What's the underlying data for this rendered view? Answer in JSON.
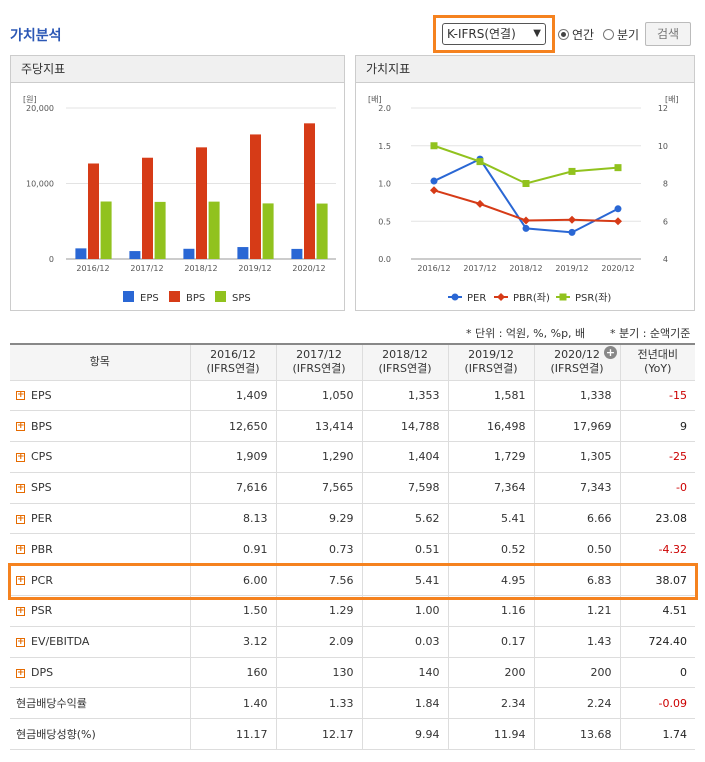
{
  "header": {
    "title": "가치분석",
    "select_value": "K-IFRS(연결)",
    "radio_annual": "연간",
    "radio_quarter": "분기",
    "search_label": "검색"
  },
  "panels": {
    "left_title": "주당지표",
    "right_title": "가치지표"
  },
  "chart_data": [
    {
      "type": "bar",
      "title": "주당지표",
      "ylabel": "[원]",
      "ylim": [
        0,
        20000
      ],
      "yticks": [
        "20,000",
        "10,000",
        "0"
      ],
      "categories": [
        "2016/12",
        "2017/12",
        "2018/12",
        "2019/12",
        "2020/12"
      ],
      "series": [
        {
          "name": "EPS",
          "color": "#2a67d4",
          "values": [
            1409,
            1050,
            1353,
            1581,
            1338
          ]
        },
        {
          "name": "BPS",
          "color": "#d63b17",
          "values": [
            12650,
            13414,
            14788,
            16498,
            17969
          ]
        },
        {
          "name": "SPS",
          "color": "#91c21e",
          "values": [
            7616,
            7565,
            7598,
            7364,
            7343
          ]
        }
      ],
      "legend": "bottom"
    },
    {
      "type": "line",
      "title": "가치지표",
      "ylabel": "[배]",
      "ylabel_right": "[배]",
      "ylim": [
        0,
        2.0
      ],
      "ylim_right": [
        4,
        12
      ],
      "yticks": [
        "2.0",
        "1.5",
        "1.0",
        "0.5",
        "0.0"
      ],
      "yticks_right": [
        "12",
        "10",
        "8",
        "6",
        "4"
      ],
      "categories": [
        "2016/12",
        "2017/12",
        "2018/12",
        "2019/12",
        "2020/12"
      ],
      "series": [
        {
          "name": "PER",
          "axis": "right",
          "color": "#2a67d4",
          "marker": "circle",
          "values": [
            8.13,
            9.29,
            5.62,
            5.41,
            6.66
          ]
        },
        {
          "name": "PBR(좌)",
          "axis": "left",
          "color": "#d63b17",
          "marker": "diamond",
          "values": [
            0.91,
            0.73,
            0.51,
            0.52,
            0.5
          ]
        },
        {
          "name": "PSR(좌)",
          "axis": "left",
          "color": "#91c21e",
          "marker": "square",
          "values": [
            1.5,
            1.29,
            1.0,
            1.16,
            1.21
          ]
        }
      ],
      "legend": "bottom"
    }
  ],
  "notes": {
    "unit": "* 단위 : 억원, %, %p, 배",
    "quarter": "* 분기 : 순액기준"
  },
  "table": {
    "headers": [
      "항목",
      "2016/12\n(IFRS연결)",
      "2017/12\n(IFRS연결)",
      "2018/12\n(IFRS연결)",
      "2019/12\n(IFRS연결)",
      "2020/12\n(IFRS연결)",
      "전년대비\n(YoY)"
    ],
    "rows": [
      {
        "label": "EPS",
        "expand": true,
        "values": [
          "1,409",
          "1,050",
          "1,353",
          "1,581",
          "1,338",
          "-15"
        ]
      },
      {
        "label": "BPS",
        "expand": true,
        "values": [
          "12,650",
          "13,414",
          "14,788",
          "16,498",
          "17,969",
          "9"
        ]
      },
      {
        "label": "CPS",
        "expand": true,
        "values": [
          "1,909",
          "1,290",
          "1,404",
          "1,729",
          "1,305",
          "-25"
        ]
      },
      {
        "label": "SPS",
        "expand": true,
        "values": [
          "7,616",
          "7,565",
          "7,598",
          "7,364",
          "7,343",
          "-0"
        ]
      },
      {
        "label": "PER",
        "expand": true,
        "values": [
          "8.13",
          "9.29",
          "5.62",
          "5.41",
          "6.66",
          "23.08"
        ]
      },
      {
        "label": "PBR",
        "expand": true,
        "values": [
          "0.91",
          "0.73",
          "0.51",
          "0.52",
          "0.50",
          "-4.32"
        ]
      },
      {
        "label": "PCR",
        "expand": true,
        "values": [
          "6.00",
          "7.56",
          "5.41",
          "4.95",
          "6.83",
          "38.07"
        ]
      },
      {
        "label": "PSR",
        "expand": true,
        "values": [
          "1.50",
          "1.29",
          "1.00",
          "1.16",
          "1.21",
          "4.51"
        ]
      },
      {
        "label": "EV/EBITDA",
        "expand": true,
        "values": [
          "3.12",
          "2.09",
          "0.03",
          "0.17",
          "1.43",
          "724.40"
        ]
      },
      {
        "label": "DPS",
        "expand": true,
        "values": [
          "160",
          "130",
          "140",
          "200",
          "200",
          "0"
        ]
      },
      {
        "label": "현금배당수익률",
        "expand": false,
        "values": [
          "1.40",
          "1.33",
          "1.84",
          "2.34",
          "2.24",
          "-0.09"
        ]
      },
      {
        "label": "현금배당성향(%)",
        "expand": false,
        "values": [
          "11.17",
          "12.17",
          "9.94",
          "11.94",
          "13.68",
          "1.74"
        ]
      }
    ]
  }
}
